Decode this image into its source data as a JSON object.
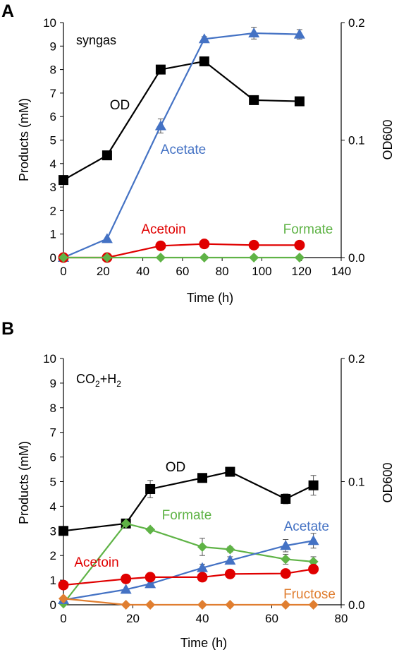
{
  "colors": {
    "od": "#000000",
    "acetate": "#4472C4",
    "acetoin": "#E00000",
    "formate": "#5FB346",
    "fructose": "#E07E30"
  },
  "chart_data": [
    {
      "type": "line",
      "panel_label": "A",
      "condition": "syngas",
      "xlabel": "Time (h)",
      "ylabel": "Products (mM)",
      "y2label": "OD600",
      "xlim": [
        0,
        140
      ],
      "xticks": [
        0,
        20,
        40,
        60,
        80,
        100,
        120,
        140
      ],
      "ylim": [
        0,
        10
      ],
      "yticks": [
        0,
        1,
        2,
        3,
        4,
        5,
        6,
        7,
        8,
        9,
        10
      ],
      "y2lim": [
        0,
        0.2
      ],
      "y2ticks": [
        "0.0",
        "0.1",
        "0.2"
      ],
      "series": [
        {
          "name": "OD",
          "axis": "right",
          "marker": "square",
          "color_key": "od",
          "x": [
            0,
            22,
            49,
            71,
            96,
            119
          ],
          "y": [
            0.066,
            0.087,
            0.16,
            0.167,
            0.134,
            0.133
          ],
          "err": [
            0,
            0,
            0,
            0,
            0,
            0
          ]
        },
        {
          "name": "Acetate",
          "axis": "left",
          "marker": "triangle",
          "color_key": "acetate",
          "x": [
            0,
            22,
            49,
            71,
            96,
            119
          ],
          "y": [
            0.0,
            0.8,
            5.6,
            9.3,
            9.55,
            9.5
          ],
          "err": [
            0,
            0,
            0.3,
            0.1,
            0.25,
            0.2
          ]
        },
        {
          "name": "Acetoin",
          "axis": "left",
          "marker": "circle",
          "color_key": "acetoin",
          "x": [
            0,
            22,
            49,
            71,
            96,
            119
          ],
          "y": [
            0.0,
            0.0,
            0.5,
            0.58,
            0.53,
            0.53
          ],
          "err": [
            0,
            0,
            0,
            0,
            0,
            0
          ]
        },
        {
          "name": "Formate",
          "axis": "left",
          "marker": "diamond",
          "color_key": "formate",
          "x": [
            0,
            22,
            49,
            71,
            96,
            119
          ],
          "y": [
            0,
            0,
            0,
            0,
            0,
            0
          ],
          "err": [
            0,
            0,
            0,
            0,
            0,
            0
          ]
        }
      ],
      "annotations": [
        {
          "text": "OD",
          "color_key": "od"
        },
        {
          "text": "Acetate",
          "color_key": "acetate"
        },
        {
          "text": "Acetoin",
          "color_key": "acetoin"
        },
        {
          "text": "Formate",
          "color_key": "formate"
        }
      ]
    },
    {
      "type": "line",
      "panel_label": "B",
      "condition_main": "CO",
      "condition_sub1": "2",
      "condition_mid": "+H",
      "condition_sub2": "2",
      "xlabel": "Time (h)",
      "ylabel": "Products (mM)",
      "y2label": "OD600",
      "xlim": [
        0,
        80
      ],
      "xticks": [
        0,
        20,
        40,
        60,
        80
      ],
      "ylim": [
        0,
        10
      ],
      "yticks": [
        0,
        1,
        2,
        3,
        4,
        5,
        6,
        7,
        8,
        9,
        10
      ],
      "y2lim": [
        0,
        0.2
      ],
      "y2ticks": [
        "0.0",
        "0.1",
        "0.2"
      ],
      "series": [
        {
          "name": "OD",
          "axis": "right",
          "marker": "square",
          "color_key": "od",
          "x": [
            0,
            18,
            25,
            40,
            48,
            64,
            72
          ],
          "y": [
            0.06,
            0.066,
            0.094,
            0.103,
            0.108,
            0.086,
            0.097
          ],
          "err": [
            0,
            0,
            0.007,
            0.003,
            0.002,
            0.004,
            0.008
          ]
        },
        {
          "name": "Formate",
          "axis": "left",
          "marker": "diamond",
          "color_key": "formate",
          "x": [
            0,
            18,
            25,
            40,
            48,
            64,
            72
          ],
          "y": [
            0.05,
            3.3,
            3.05,
            2.35,
            2.25,
            1.85,
            1.75
          ],
          "err": [
            0,
            0,
            0,
            0.35,
            0.1,
            0.2,
            0.2
          ]
        },
        {
          "name": "Acetate",
          "axis": "left",
          "marker": "triangle",
          "color_key": "acetate",
          "x": [
            0,
            18,
            25,
            40,
            48,
            64,
            72
          ],
          "y": [
            0.2,
            0.62,
            0.85,
            1.5,
            1.8,
            2.4,
            2.6
          ],
          "err": [
            0,
            0,
            0,
            0.15,
            0.15,
            0.25,
            0.3
          ]
        },
        {
          "name": "Acetoin",
          "axis": "left",
          "marker": "circle",
          "color_key": "acetoin",
          "x": [
            0,
            18,
            25,
            40,
            48,
            64,
            72
          ],
          "y": [
            0.8,
            1.05,
            1.12,
            1.12,
            1.25,
            1.27,
            1.45
          ],
          "err": [
            0,
            0,
            0,
            0,
            0,
            0,
            0
          ]
        },
        {
          "name": "Fructose",
          "axis": "left",
          "marker": "diamond",
          "color_key": "fructose",
          "x": [
            0,
            18,
            25,
            40,
            48,
            64,
            72
          ],
          "y": [
            0.25,
            0,
            0,
            0,
            0,
            0,
            0
          ],
          "err": [
            0,
            0,
            0,
            0,
            0,
            0,
            0
          ]
        }
      ],
      "annotations": [
        {
          "text": "OD",
          "color_key": "od"
        },
        {
          "text": "Formate",
          "color_key": "formate"
        },
        {
          "text": "Acetate",
          "color_key": "acetate"
        },
        {
          "text": "Acetoin",
          "color_key": "acetoin"
        },
        {
          "text": "Fructose",
          "color_key": "fructose"
        }
      ]
    }
  ]
}
